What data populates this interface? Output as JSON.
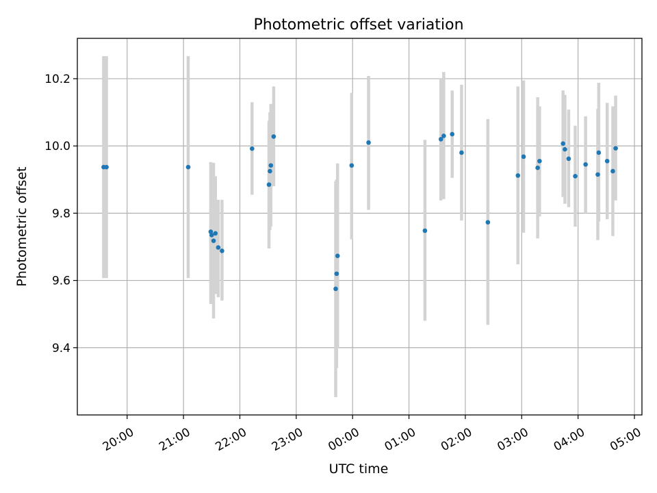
{
  "chart_data": {
    "type": "scatter",
    "title": "Photometric offset variation",
    "xlabel": "UTC time",
    "ylabel": "Photometric offset",
    "x_is_time": true,
    "xlim": [
      "19:07",
      "05:08"
    ],
    "ylim": [
      9.2,
      10.32
    ],
    "x_ticks": [
      "20:00",
      "21:00",
      "22:00",
      "23:00",
      "00:00",
      "01:00",
      "02:00",
      "03:00",
      "04:00",
      "05:00"
    ],
    "y_ticks": [
      "9.4",
      "9.6",
      "9.8",
      "10.0",
      "10.2"
    ],
    "grid": true,
    "point_color": "#1f77b4",
    "errorbar_color": "#d3d3d3",
    "points": [
      {
        "t": "19:35",
        "y": 9.937,
        "ylo": 9.607,
        "yhi": 10.267
      },
      {
        "t": "19:38",
        "y": 9.937,
        "ylo": 9.607,
        "yhi": 10.267
      },
      {
        "t": "21:05",
        "y": 9.937,
        "ylo": 9.607,
        "yhi": 10.267
      },
      {
        "t": "21:29",
        "y": 9.745,
        "ylo": 9.53,
        "yhi": 9.952
      },
      {
        "t": "21:30",
        "y": 9.735,
        "ylo": 9.55,
        "yhi": 9.94
      },
      {
        "t": "21:32",
        "y": 9.718,
        "ylo": 9.487,
        "yhi": 9.95
      },
      {
        "t": "21:34",
        "y": 9.74,
        "ylo": 9.56,
        "yhi": 9.91
      },
      {
        "t": "21:37",
        "y": 9.698,
        "ylo": 9.55,
        "yhi": 9.84
      },
      {
        "t": "21:41",
        "y": 9.688,
        "ylo": 9.54,
        "yhi": 9.84
      },
      {
        "t": "22:13",
        "y": 9.992,
        "ylo": 9.855,
        "yhi": 10.13
      },
      {
        "t": "22:31",
        "y": 9.885,
        "ylo": 9.695,
        "yhi": 10.075
      },
      {
        "t": "22:32",
        "y": 9.925,
        "ylo": 9.75,
        "yhi": 10.1
      },
      {
        "t": "22:33",
        "y": 9.942,
        "ylo": 9.76,
        "yhi": 10.125
      },
      {
        "t": "22:36",
        "y": 10.028,
        "ylo": 9.88,
        "yhi": 10.177
      },
      {
        "t": "23:42",
        "y": 9.575,
        "ylo": 9.253,
        "yhi": 9.895
      },
      {
        "t": "23:43",
        "y": 9.62,
        "ylo": 9.34,
        "yhi": 9.9
      },
      {
        "t": "23:44",
        "y": 9.673,
        "ylo": 9.4,
        "yhi": 9.948
      },
      {
        "t": "23:59",
        "y": 9.942,
        "ylo": 9.722,
        "yhi": 10.158
      },
      {
        "t": "00:17",
        "y": 10.01,
        "ylo": 9.81,
        "yhi": 10.208
      },
      {
        "t": "01:17",
        "y": 9.748,
        "ylo": 9.48,
        "yhi": 10.018
      },
      {
        "t": "01:34",
        "y": 10.02,
        "ylo": 9.838,
        "yhi": 10.2
      },
      {
        "t": "01:37",
        "y": 10.03,
        "ylo": 9.842,
        "yhi": 10.22
      },
      {
        "t": "01:46",
        "y": 10.035,
        "ylo": 9.905,
        "yhi": 10.165
      },
      {
        "t": "01:56",
        "y": 9.98,
        "ylo": 9.778,
        "yhi": 10.182
      },
      {
        "t": "02:24",
        "y": 9.773,
        "ylo": 9.468,
        "yhi": 10.08
      },
      {
        "t": "02:56",
        "y": 9.912,
        "ylo": 9.648,
        "yhi": 10.177
      },
      {
        "t": "03:02",
        "y": 9.968,
        "ylo": 9.742,
        "yhi": 10.195
      },
      {
        "t": "03:17",
        "y": 9.935,
        "ylo": 9.725,
        "yhi": 10.145
      },
      {
        "t": "03:19",
        "y": 9.955,
        "ylo": 9.79,
        "yhi": 10.118
      },
      {
        "t": "03:44",
        "y": 10.007,
        "ylo": 9.848,
        "yhi": 10.165
      },
      {
        "t": "03:46",
        "y": 9.99,
        "ylo": 9.828,
        "yhi": 10.152
      },
      {
        "t": "03:50",
        "y": 9.962,
        "ylo": 9.818,
        "yhi": 10.108
      },
      {
        "t": "03:57",
        "y": 9.91,
        "ylo": 9.76,
        "yhi": 10.06
      },
      {
        "t": "04:08",
        "y": 9.945,
        "ylo": 9.8,
        "yhi": 10.088
      },
      {
        "t": "04:21",
        "y": 9.915,
        "ylo": 9.72,
        "yhi": 10.11
      },
      {
        "t": "04:22",
        "y": 9.98,
        "ylo": 9.775,
        "yhi": 10.188
      },
      {
        "t": "04:31",
        "y": 9.955,
        "ylo": 9.782,
        "yhi": 10.128
      },
      {
        "t": "04:37",
        "y": 9.925,
        "ylo": 9.732,
        "yhi": 10.118
      },
      {
        "t": "04:40",
        "y": 9.993,
        "ylo": 9.838,
        "yhi": 10.15
      }
    ]
  }
}
